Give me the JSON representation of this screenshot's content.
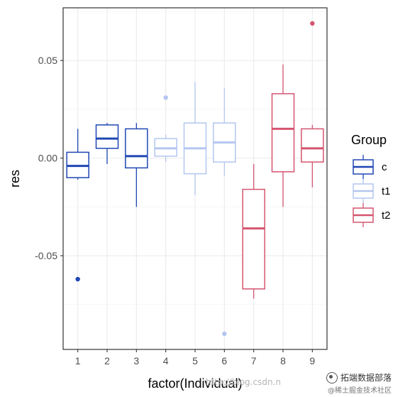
{
  "chart_data": {
    "type": "box",
    "xlabel": "factor(Individual)",
    "ylabel": "res",
    "categories": [
      "1",
      "2",
      "3",
      "4",
      "5",
      "6",
      "7",
      "8",
      "9"
    ],
    "ylim": [
      -0.098,
      0.077
    ],
    "yticks": [
      -0.05,
      0.0,
      0.05
    ],
    "ytick_labels": [
      "-0.05",
      "0.00",
      "0.05"
    ],
    "grid": true,
    "legend": {
      "title": "Group",
      "placement": "right",
      "entries": [
        {
          "label": "c",
          "color": "#1f46b4"
        },
        {
          "label": "t1",
          "color": "#b3c6f0"
        },
        {
          "label": "t2",
          "color": "#d4556f"
        }
      ]
    },
    "boxes": [
      {
        "category": "1",
        "group": "c",
        "whisker_low": -0.011,
        "q1": -0.01,
        "median": -0.004,
        "q3": 0.003,
        "whisker_high": 0.015,
        "outliers": [
          -0.062
        ]
      },
      {
        "category": "2",
        "group": "c",
        "whisker_low": -0.003,
        "q1": 0.005,
        "median": 0.01,
        "q3": 0.017,
        "whisker_high": 0.018,
        "outliers": []
      },
      {
        "category": "3",
        "group": "c",
        "whisker_low": -0.025,
        "q1": -0.005,
        "median": 0.001,
        "q3": 0.015,
        "whisker_high": 0.018,
        "outliers": []
      },
      {
        "category": "4",
        "group": "t1",
        "whisker_low": -0.002,
        "q1": 0.001,
        "median": 0.005,
        "q3": 0.01,
        "whisker_high": 0.012,
        "outliers": [
          0.031
        ]
      },
      {
        "category": "5",
        "group": "t1",
        "whisker_low": -0.019,
        "q1": -0.008,
        "median": 0.005,
        "q3": 0.018,
        "whisker_high": 0.039,
        "outliers": []
      },
      {
        "category": "6",
        "group": "t1",
        "whisker_low": -0.009,
        "q1": -0.002,
        "median": 0.008,
        "q3": 0.018,
        "whisker_high": 0.036,
        "outliers": [
          -0.09
        ]
      },
      {
        "category": "7",
        "group": "t2",
        "whisker_low": -0.072,
        "q1": -0.067,
        "median": -0.036,
        "q3": -0.016,
        "whisker_high": -0.003,
        "outliers": []
      },
      {
        "category": "8",
        "group": "t2",
        "whisker_low": -0.025,
        "q1": -0.007,
        "median": 0.015,
        "q3": 0.033,
        "whisker_high": 0.048,
        "outliers": []
      },
      {
        "category": "9",
        "group": "t2",
        "whisker_low": -0.015,
        "q1": -0.002,
        "median": 0.005,
        "q3": 0.015,
        "whisker_high": 0.017,
        "outliers": [
          0.069
        ]
      }
    ]
  },
  "watermark": {
    "blog": "http://blog.csdn.n",
    "brand": "拓端数据部落",
    "sub": "@稀土掘金技术社区"
  }
}
